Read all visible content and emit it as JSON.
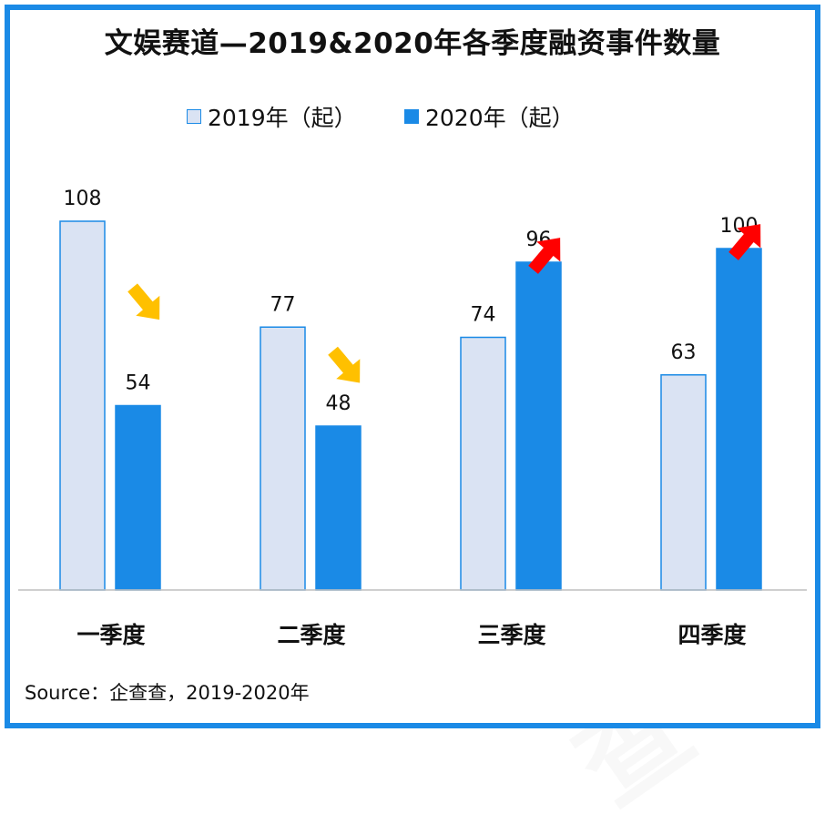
{
  "title": "文娱赛道—2019&2020年各季度融资事件数量",
  "source": "Source：企查查，2019-2020年",
  "watermark": "企查查",
  "colors": {
    "series_2019_fill": "#dae3f3",
    "series_2019_stroke": "#1a8ae6",
    "series_2020_fill": "#1a8ae6",
    "frame": "#1a8ae6",
    "arrow_down": "#ffc000",
    "arrow_up": "#ff0000"
  },
  "chart_data": {
    "type": "bar",
    "title": "文娱赛道—2019&2020年各季度融资事件数量",
    "categories": [
      "一季度",
      "二季度",
      "三季度",
      "四季度"
    ],
    "series": [
      {
        "name": "2019年（起）",
        "values": [
          108,
          77,
          74,
          63
        ]
      },
      {
        "name": "2020年（起）",
        "values": [
          54,
          48,
          96,
          100
        ]
      }
    ],
    "ylim": [
      0,
      108
    ],
    "legend_position": "top",
    "grid": false,
    "data_labels": true,
    "trend_arrows": [
      "down",
      "down",
      "up",
      "up"
    ]
  }
}
